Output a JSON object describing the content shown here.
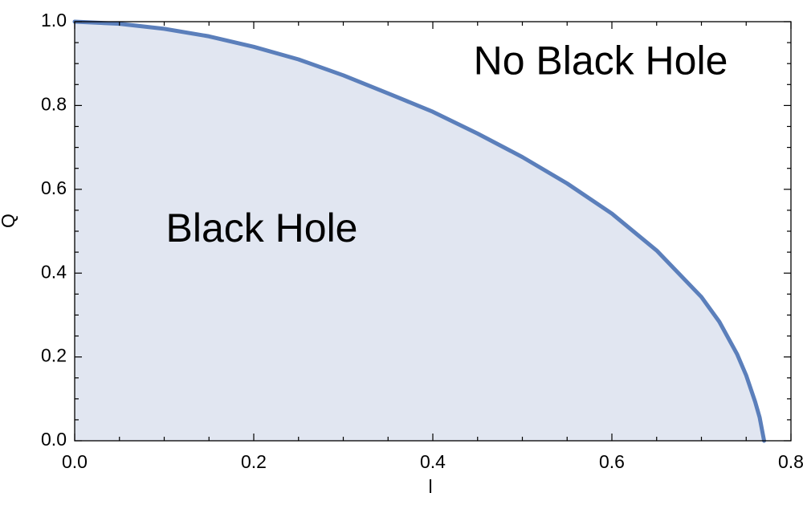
{
  "chart_data": {
    "type": "area",
    "xlabel": "l",
    "ylabel": "Q",
    "xlim": [
      0.0,
      0.8
    ],
    "ylim": [
      0.0,
      1.0
    ],
    "x_ticks": [
      "0.0",
      "0.2",
      "0.4",
      "0.6",
      "0.8"
    ],
    "y_ticks": [
      "0.0",
      "0.2",
      "0.4",
      "0.6",
      "0.8",
      "1.0"
    ],
    "grid": false,
    "series": [
      {
        "x": [
          0.0,
          0.05,
          0.1,
          0.15,
          0.2,
          0.25,
          0.3,
          0.35,
          0.4,
          0.45,
          0.5,
          0.55,
          0.6,
          0.65,
          0.7,
          0.72,
          0.74,
          0.75,
          0.76,
          0.765,
          0.77
        ],
        "y": [
          1.0,
          0.995,
          0.983,
          0.965,
          0.94,
          0.91,
          0.872,
          0.829,
          0.785,
          0.733,
          0.677,
          0.614,
          0.542,
          0.454,
          0.343,
          0.284,
          0.206,
          0.156,
          0.093,
          0.056,
          0.0
        ]
      }
    ],
    "annotations": [
      {
        "text": "No Black Hole",
        "x": 0.6,
        "y": 0.9
      },
      {
        "text": "Black Hole",
        "x": 0.2,
        "y": 0.5
      }
    ],
    "colors": {
      "curve": "#5B7FBB",
      "fill": "#E1E6F1",
      "frame": "#000000"
    }
  }
}
